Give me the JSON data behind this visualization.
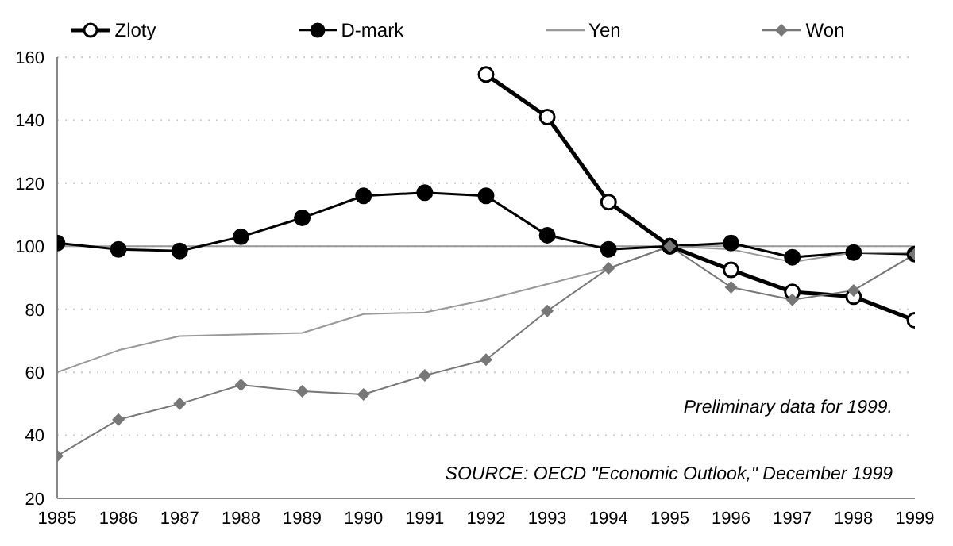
{
  "chart_data": {
    "type": "line",
    "x": [
      1985,
      1986,
      1987,
      1988,
      1989,
      1990,
      1991,
      1992,
      1993,
      1994,
      1995,
      1996,
      1997,
      1998,
      1999
    ],
    "series": [
      {
        "name": "Zloty",
        "color": "#000000",
        "marker": "circle",
        "values": [
          null,
          null,
          null,
          null,
          null,
          null,
          null,
          154.5,
          141,
          114,
          100,
          92.5,
          85.5,
          84,
          76.5
        ]
      },
      {
        "name": "D-mark",
        "color": "#000000",
        "marker": "circle",
        "values": [
          101,
          99,
          98.5,
          103,
          109,
          116,
          117,
          116,
          103.5,
          99,
          100,
          101,
          96.5,
          98,
          97.5
        ]
      },
      {
        "name": "Yen",
        "color": "#999999",
        "marker": "none",
        "values": [
          60,
          67,
          71.5,
          72,
          72.5,
          78.5,
          79,
          83,
          88,
          93,
          100,
          99,
          95,
          98,
          98
        ]
      },
      {
        "name": "Won",
        "color": "#777777",
        "marker": "diamond",
        "values": [
          33.5,
          45,
          50,
          56,
          54,
          53,
          59,
          64,
          79.5,
          93,
          100,
          87,
          83,
          86,
          97.5
        ]
      }
    ],
    "xlim": [
      1985,
      1999
    ],
    "xticks": [
      1985,
      1986,
      1987,
      1988,
      1989,
      1990,
      1991,
      1992,
      1993,
      1994,
      1995,
      1996,
      1997,
      1998,
      1999
    ],
    "ylim": [
      20,
      160
    ],
    "yticks": [
      20,
      40,
      60,
      80,
      100,
      120,
      140,
      160
    ],
    "grid": "y",
    "legend": "top",
    "ref_lines": [
      {
        "axis": "y",
        "value": 100,
        "color": "#999999"
      }
    ],
    "annotations": [
      "Preliminary data for 1999.",
      "SOURCE: OECD \"Economic Outlook,\" December 1999"
    ]
  }
}
